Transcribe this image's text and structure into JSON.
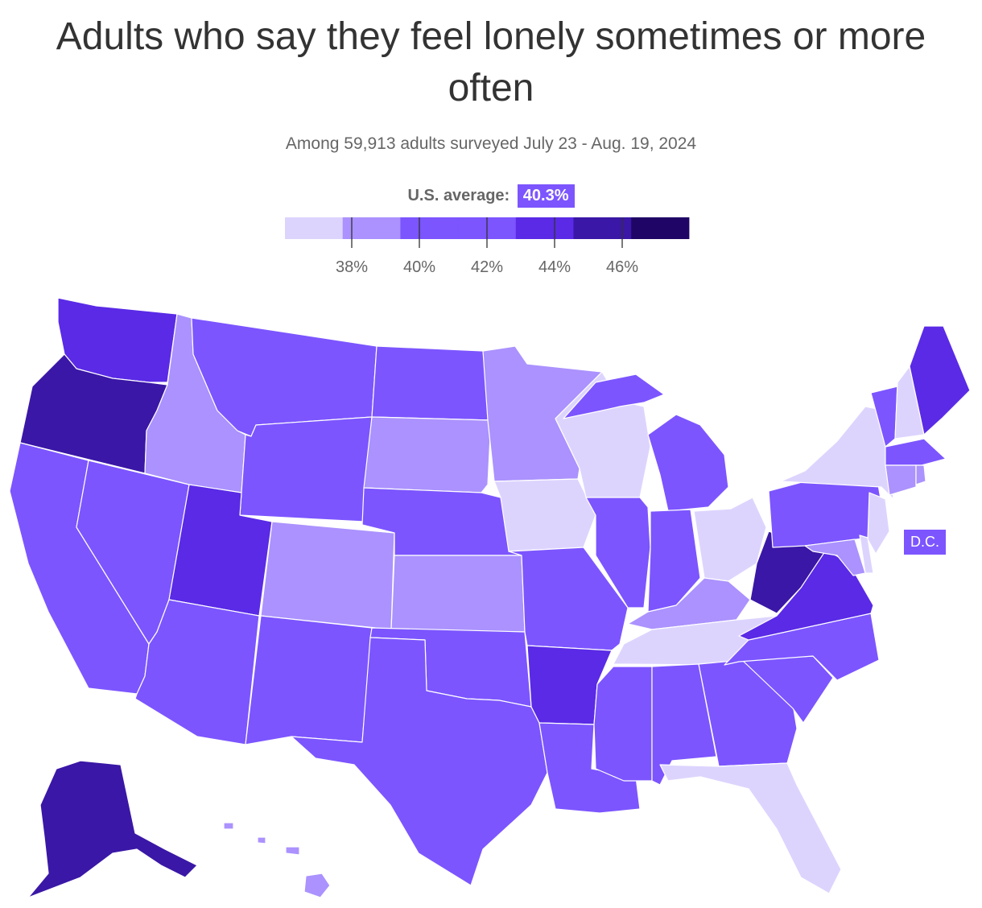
{
  "title": "Adults who say they feel lonely sometimes or more often",
  "subtitle": "Among 59,913 adults surveyed July 23 - Aug. 19, 2024",
  "average": {
    "label": "U.S. average:",
    "value": "40.3%"
  },
  "legend": {
    "colors": [
      "#ddd4fe",
      "#ab92fe",
      "#7c55ff",
      "#7c55ff",
      "#5a2ae6",
      "#3a17a6",
      "#1f0565"
    ],
    "ticks": [
      "38%",
      "40%",
      "42%",
      "44%",
      "46%"
    ]
  },
  "dc_label": "D.C.",
  "chart_data": {
    "type": "choropleth",
    "title": "Adults who say they feel lonely sometimes or more often",
    "subtitle": "Among 59,913 adults surveyed July 23 - Aug. 19, 2024",
    "average": 40.3,
    "legend_bins": [
      {
        "range": [
          36,
          38
        ],
        "color": "#ddd4fe"
      },
      {
        "range": [
          38,
          40
        ],
        "color": "#ab92fe"
      },
      {
        "range": [
          40,
          42
        ],
        "color": "#7c55ff"
      },
      {
        "range": [
          42,
          44
        ],
        "color": "#7c55ff"
      },
      {
        "range": [
          44,
          46
        ],
        "color": "#5a2ae6"
      },
      {
        "range": [
          46,
          48
        ],
        "color": "#3a17a6"
      },
      {
        "range": [
          48,
          50
        ],
        "color": "#1f0565"
      }
    ],
    "states": {
      "WA": "#5a2ae6",
      "OR": "#3a17a6",
      "CA": "#7c55ff",
      "NV": "#7c55ff",
      "ID": "#ab92fe",
      "MT": "#7c55ff",
      "WY": "#7c55ff",
      "UT": "#5a2ae6",
      "AZ": "#7c55ff",
      "CO": "#ab92fe",
      "NM": "#7c55ff",
      "ND": "#7c55ff",
      "SD": "#ab92fe",
      "NE": "#7c55ff",
      "KS": "#ab92fe",
      "OK": "#7c55ff",
      "TX": "#7c55ff",
      "MN": "#ab92fe",
      "IA": "#ddd4fe",
      "MO": "#7c55ff",
      "AR": "#5a2ae6",
      "LA": "#7c55ff",
      "WI": "#ddd4fe",
      "IL": "#7c55ff",
      "MI": "#7c55ff",
      "IN": "#7c55ff",
      "OH": "#ddd4fe",
      "KY": "#ab92fe",
      "TN": "#ddd4fe",
      "MS": "#7c55ff",
      "AL": "#7c55ff",
      "GA": "#7c55ff",
      "FL": "#ddd4fe",
      "SC": "#7c55ff",
      "NC": "#7c55ff",
      "VA": "#5a2ae6",
      "WV": "#3a17a6",
      "PA": "#7c55ff",
      "NY": "#ddd4fe",
      "VT": "#7c55ff",
      "NH": "#ddd4fe",
      "ME": "#5a2ae6",
      "MA": "#7c55ff",
      "CT": "#ab92fe",
      "RI": "#ab92fe",
      "NJ": "#ddd4fe",
      "DE": "#ddd4fe",
      "MD": "#ab92fe",
      "DC": "#7c55ff",
      "AK": "#3a17a6",
      "HI": "#ab92fe"
    }
  }
}
